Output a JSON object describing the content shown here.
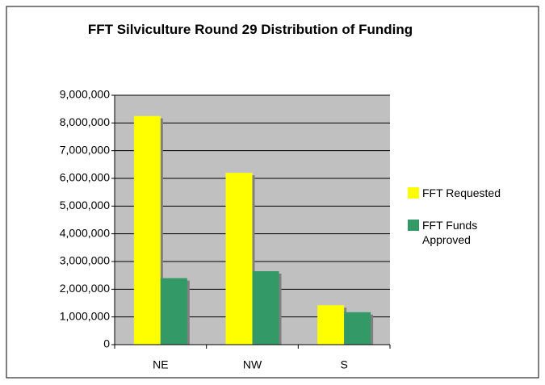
{
  "chart_data": {
    "type": "bar",
    "title": "FFT Silviculture Round 29 Distribution of Funding",
    "categories": [
      "NE",
      "NW",
      "S"
    ],
    "series": [
      {
        "name": "FFT Requested",
        "color": "#ffff00",
        "values": [
          8250000,
          6200000,
          1420000
        ]
      },
      {
        "name": "FFT Funds Approved",
        "color": "#339966",
        "values": [
          2400000,
          2650000,
          1170000
        ]
      }
    ],
    "ylim": [
      0,
      9000000
    ],
    "yticks": [
      0,
      {
        "value": 1000000,
        "label": "1,000,000"
      },
      {
        "value": 2000000,
        "label": "2,000,000"
      },
      {
        "value": 3000000,
        "label": "3,000,000"
      },
      {
        "value": 4000000,
        "label": "4,000,000"
      },
      {
        "value": 5000000,
        "label": "5,000,000"
      },
      {
        "value": 6000000,
        "label": "6,000,000"
      },
      {
        "value": 7000000,
        "label": "7,000,000"
      },
      {
        "value": 8000000,
        "label": "8,000,000"
      },
      {
        "value": 9000000,
        "label": "9,000,000"
      }
    ],
    "grid": true,
    "legend": "right"
  }
}
